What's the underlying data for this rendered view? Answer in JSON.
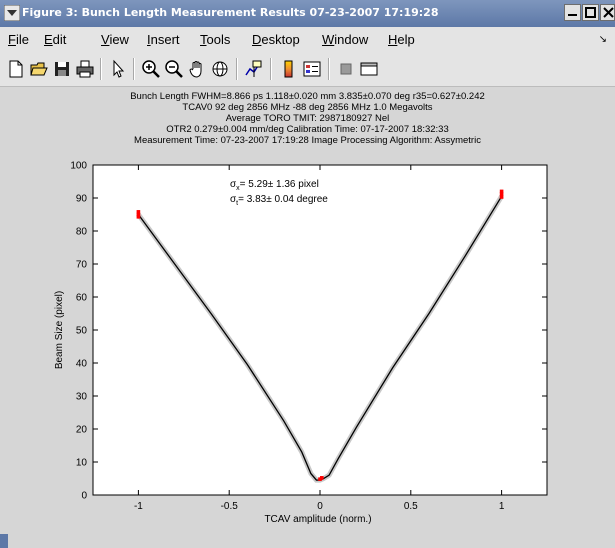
{
  "window": {
    "title": "Figure 3: Bunch Length Measurement Results 07-23-2007 17:19:28"
  },
  "menu": {
    "items": [
      {
        "key": "F",
        "rest": "ile"
      },
      {
        "key": "E",
        "rest": "dit"
      },
      {
        "key": "V",
        "rest": "iew"
      },
      {
        "key": "I",
        "rest": "nsert"
      },
      {
        "key": "T",
        "rest": "ools"
      },
      {
        "key": "D",
        "rest": "esktop"
      },
      {
        "key": "W",
        "rest": "indow"
      },
      {
        "key": "H",
        "rest": "elp"
      }
    ]
  },
  "toolbar": {
    "icons": [
      "new-file-icon",
      "open-file-icon",
      "save-icon",
      "print-icon",
      "pointer-icon",
      "zoom-in-icon",
      "zoom-out-icon",
      "pan-hand-icon",
      "rotate-3d-icon",
      "data-cursor-icon",
      "colorbar-icon",
      "legend-icon",
      "hide-plot-tools-icon",
      "show-plot-tools-icon"
    ]
  },
  "header": {
    "line1": "Bunch Length    FWHM=8.866 ps    1.118±0.020 mm    3.835±0.070 deg    r35=0.627±0.242",
    "line2": "TCAV0    92 deg 2856 MHz    -88 deg 2856 MHz    1.0 Megavolts",
    "line3": "Average TORO TMIT: 2987180927 Nel",
    "line4": "OTR2    0.279±0.004 mm/deg    Calibration Time: 07-17-2007 18:32:33",
    "line5": "Measurement Time: 07-23-2007 17:19:28    Image Processing Algorithm: Assymetric"
  },
  "chart_data": {
    "type": "scatter",
    "title": "",
    "xlabel": "TCAV amplitude (norm.)",
    "ylabel": "Beam Size  (pixel)",
    "xlim": [
      -1.25,
      1.25
    ],
    "ylim": [
      0,
      100
    ],
    "xticks": [
      -1,
      -0.5,
      0,
      0.5,
      1
    ],
    "yticks": [
      0,
      10,
      20,
      30,
      40,
      50,
      60,
      70,
      80,
      90,
      100
    ],
    "xtick_labels": [
      "-1",
      "-0.5",
      "0",
      "0.5",
      "1"
    ],
    "ytick_labels": [
      "0",
      "10",
      "20",
      "30",
      "40",
      "50",
      "60",
      "70",
      "80",
      "90",
      "100"
    ],
    "annotations": {
      "sigma_x": {
        "sym": "σ",
        "sub": "x",
        "text": "=  5.29± 1.36 pixel"
      },
      "sigma_t": {
        "sym": "σ",
        "sub": "t",
        "text": "=  3.83± 0.04 degree"
      }
    },
    "series": [
      {
        "kind": "fit",
        "color": "#000000",
        "points": [
          [
            -1.0,
            85.0
          ],
          [
            -0.8,
            70.0
          ],
          [
            -0.6,
            55.0
          ],
          [
            -0.4,
            39.5
          ],
          [
            -0.2,
            22.5
          ],
          [
            -0.1,
            13.0
          ],
          [
            -0.05,
            6.5
          ],
          [
            -0.02,
            4.5
          ],
          [
            0.0,
            4.5
          ],
          [
            0.02,
            5.0
          ],
          [
            0.05,
            6.0
          ],
          [
            0.1,
            11.0
          ],
          [
            0.2,
            20.5
          ],
          [
            0.4,
            38.5
          ],
          [
            0.6,
            55.0
          ],
          [
            0.8,
            72.5
          ],
          [
            1.0,
            90.5
          ]
        ]
      },
      {
        "kind": "measured",
        "color": "#ff0000",
        "points": [
          [
            -1.0,
            85.0
          ],
          [
            -1.0,
            85.8
          ],
          [
            -1.0,
            84.3
          ],
          [
            0.0,
            4.8
          ],
          [
            0.01,
            5.2
          ],
          [
            1.0,
            90.3
          ],
          [
            1.0,
            91.2
          ],
          [
            1.0,
            92.0
          ]
        ]
      }
    ]
  }
}
